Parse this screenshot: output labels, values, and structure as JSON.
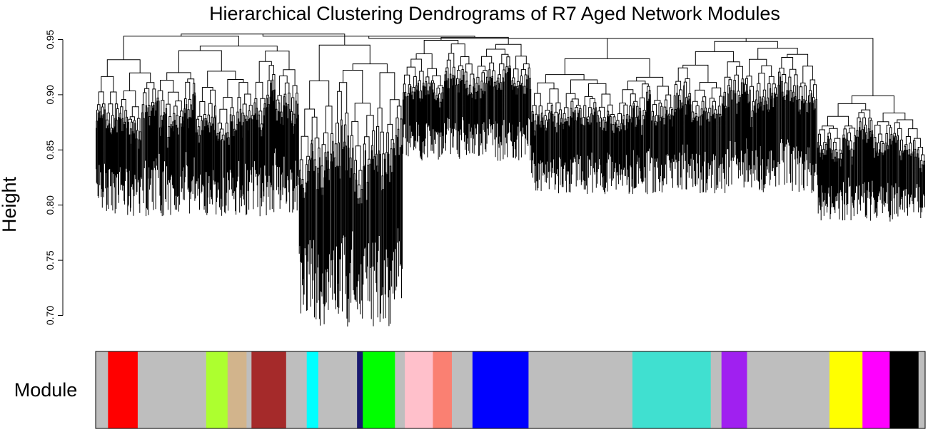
{
  "chart_data": {
    "type": "dendrogram",
    "title": "Hierarchical Clustering Dendrograms of R7 Aged Network Modules",
    "ylabel": "Height",
    "ylim": [
      0.69,
      0.96
    ],
    "yticks": [
      "0.70",
      "0.75",
      "0.80",
      "0.85",
      "0.90",
      "0.95"
    ],
    "color_row_label": "Module",
    "root_height": 0.955,
    "clusters": [
      {
        "span": [
          0.0,
          0.245
        ],
        "top": 0.953,
        "min": 0.79,
        "join": 0.955
      },
      {
        "span": [
          0.245,
          0.37
        ],
        "top": 0.945,
        "min": 0.69,
        "join": 0.955
      },
      {
        "span": [
          0.37,
          0.525
        ],
        "top": 0.952,
        "min": 0.84,
        "join": 0.953
      },
      {
        "span": [
          0.525,
          0.87
        ],
        "top": 0.951,
        "min": 0.81,
        "join": 0.951
      },
      {
        "span": [
          0.87,
          1.0
        ],
        "top": 0.899,
        "min": 0.785,
        "join": 0.951
      }
    ],
    "modules": [
      {
        "color": "#bebebe",
        "width": 0.015
      },
      {
        "color": "#ff0000",
        "width": 0.036
      },
      {
        "color": "#bebebe",
        "width": 0.083
      },
      {
        "color": "#adff2f",
        "width": 0.026
      },
      {
        "color": "#d2b48c",
        "width": 0.023
      },
      {
        "color": "#bebebe",
        "width": 0.006
      },
      {
        "color": "#a52a2a",
        "width": 0.042
      },
      {
        "color": "#bebebe",
        "width": 0.025
      },
      {
        "color": "#00ffff",
        "width": 0.014
      },
      {
        "color": "#bebebe",
        "width": 0.047
      },
      {
        "color": "#191970",
        "width": 0.007
      },
      {
        "color": "#00ff00",
        "width": 0.039
      },
      {
        "color": "#bebebe",
        "width": 0.012
      },
      {
        "color": "#ffc0cb",
        "width": 0.034
      },
      {
        "color": "#fa8072",
        "width": 0.023
      },
      {
        "color": "#bebebe",
        "width": 0.025
      },
      {
        "color": "#0000ff",
        "width": 0.068
      },
      {
        "color": "#bebebe",
        "width": 0.126
      },
      {
        "color": "#40e0d0",
        "width": 0.095
      },
      {
        "color": "#bebebe",
        "width": 0.013
      },
      {
        "color": "#a020f0",
        "width": 0.031
      },
      {
        "color": "#bebebe",
        "width": 0.1
      },
      {
        "color": "#ffff00",
        "width": 0.04
      },
      {
        "color": "#ff00ff",
        "width": 0.033
      },
      {
        "color": "#000000",
        "width": 0.035
      },
      {
        "color": "#bebebe",
        "width": 0.008
      }
    ]
  }
}
